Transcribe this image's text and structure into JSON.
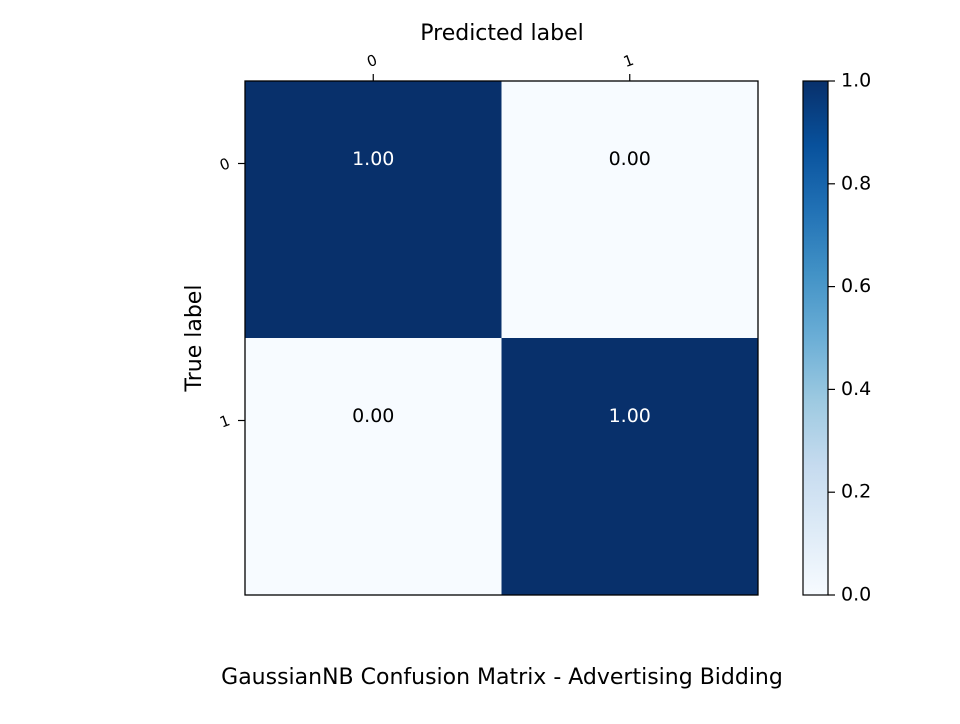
{
  "chart_data": {
    "type": "heatmap",
    "title": "GaussianNB Confusion Matrix - Advertising Bidding",
    "xlabel": "Predicted label",
    "ylabel": "True label",
    "x_categories": [
      "0",
      "1"
    ],
    "y_categories": [
      "0",
      "1"
    ],
    "values": [
      [
        1.0,
        0.0
      ],
      [
        0.0,
        1.0
      ]
    ],
    "cell_labels": [
      [
        "1.00",
        "0.00"
      ],
      [
        "0.00",
        "1.00"
      ]
    ],
    "colormap": "Blues",
    "color_low": "#f7fbff",
    "color_high": "#08306b",
    "colorbar": {
      "range": [
        0,
        1
      ],
      "ticks": [
        "0.0",
        "0.2",
        "0.4",
        "0.6",
        "0.8",
        "1.0"
      ]
    },
    "text_color_dark_cell": "#ffffff",
    "text_color_light_cell": "#000000"
  }
}
